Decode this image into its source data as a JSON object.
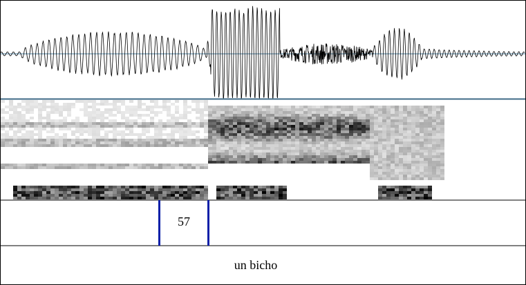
{
  "tier1": {
    "label": "57"
  },
  "tier2": {
    "label": "un bicho"
  }
}
